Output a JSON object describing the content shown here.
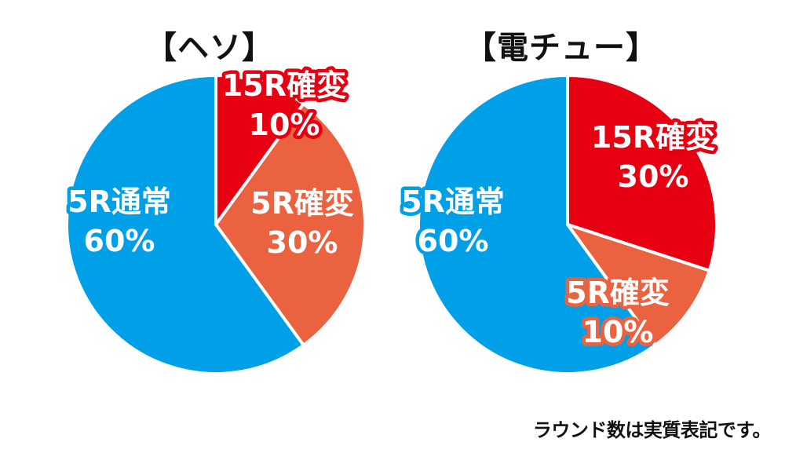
{
  "colors": {
    "kakuhen15": "#e60012",
    "kakuhen5": "#ea6240",
    "tsujo5": "#00a0e9",
    "slice_border": "#ffffff",
    "label_fill": "#ffffff"
  },
  "footnote": "ラウンド数は実質表記です。",
  "chart_data": [
    {
      "type": "pie",
      "title": "【ヘソ】",
      "slices": [
        {
          "name": "15R確変",
          "value": 10,
          "label": "10%",
          "color_key": "kakuhen15"
        },
        {
          "name": "5R確変",
          "value": 30,
          "label": "30%",
          "color_key": "kakuhen5"
        },
        {
          "name": "5R通常",
          "value": 60,
          "label": "60%",
          "color_key": "tsujo5"
        }
      ]
    },
    {
      "type": "pie",
      "title": "【電チュー】",
      "slices": [
        {
          "name": "15R確変",
          "value": 30,
          "label": "30%",
          "color_key": "kakuhen15"
        },
        {
          "name": "5R確変",
          "value": 10,
          "label": "10%",
          "color_key": "kakuhen5"
        },
        {
          "name": "5R通常",
          "value": 60,
          "label": "60%",
          "color_key": "tsujo5"
        }
      ]
    }
  ]
}
